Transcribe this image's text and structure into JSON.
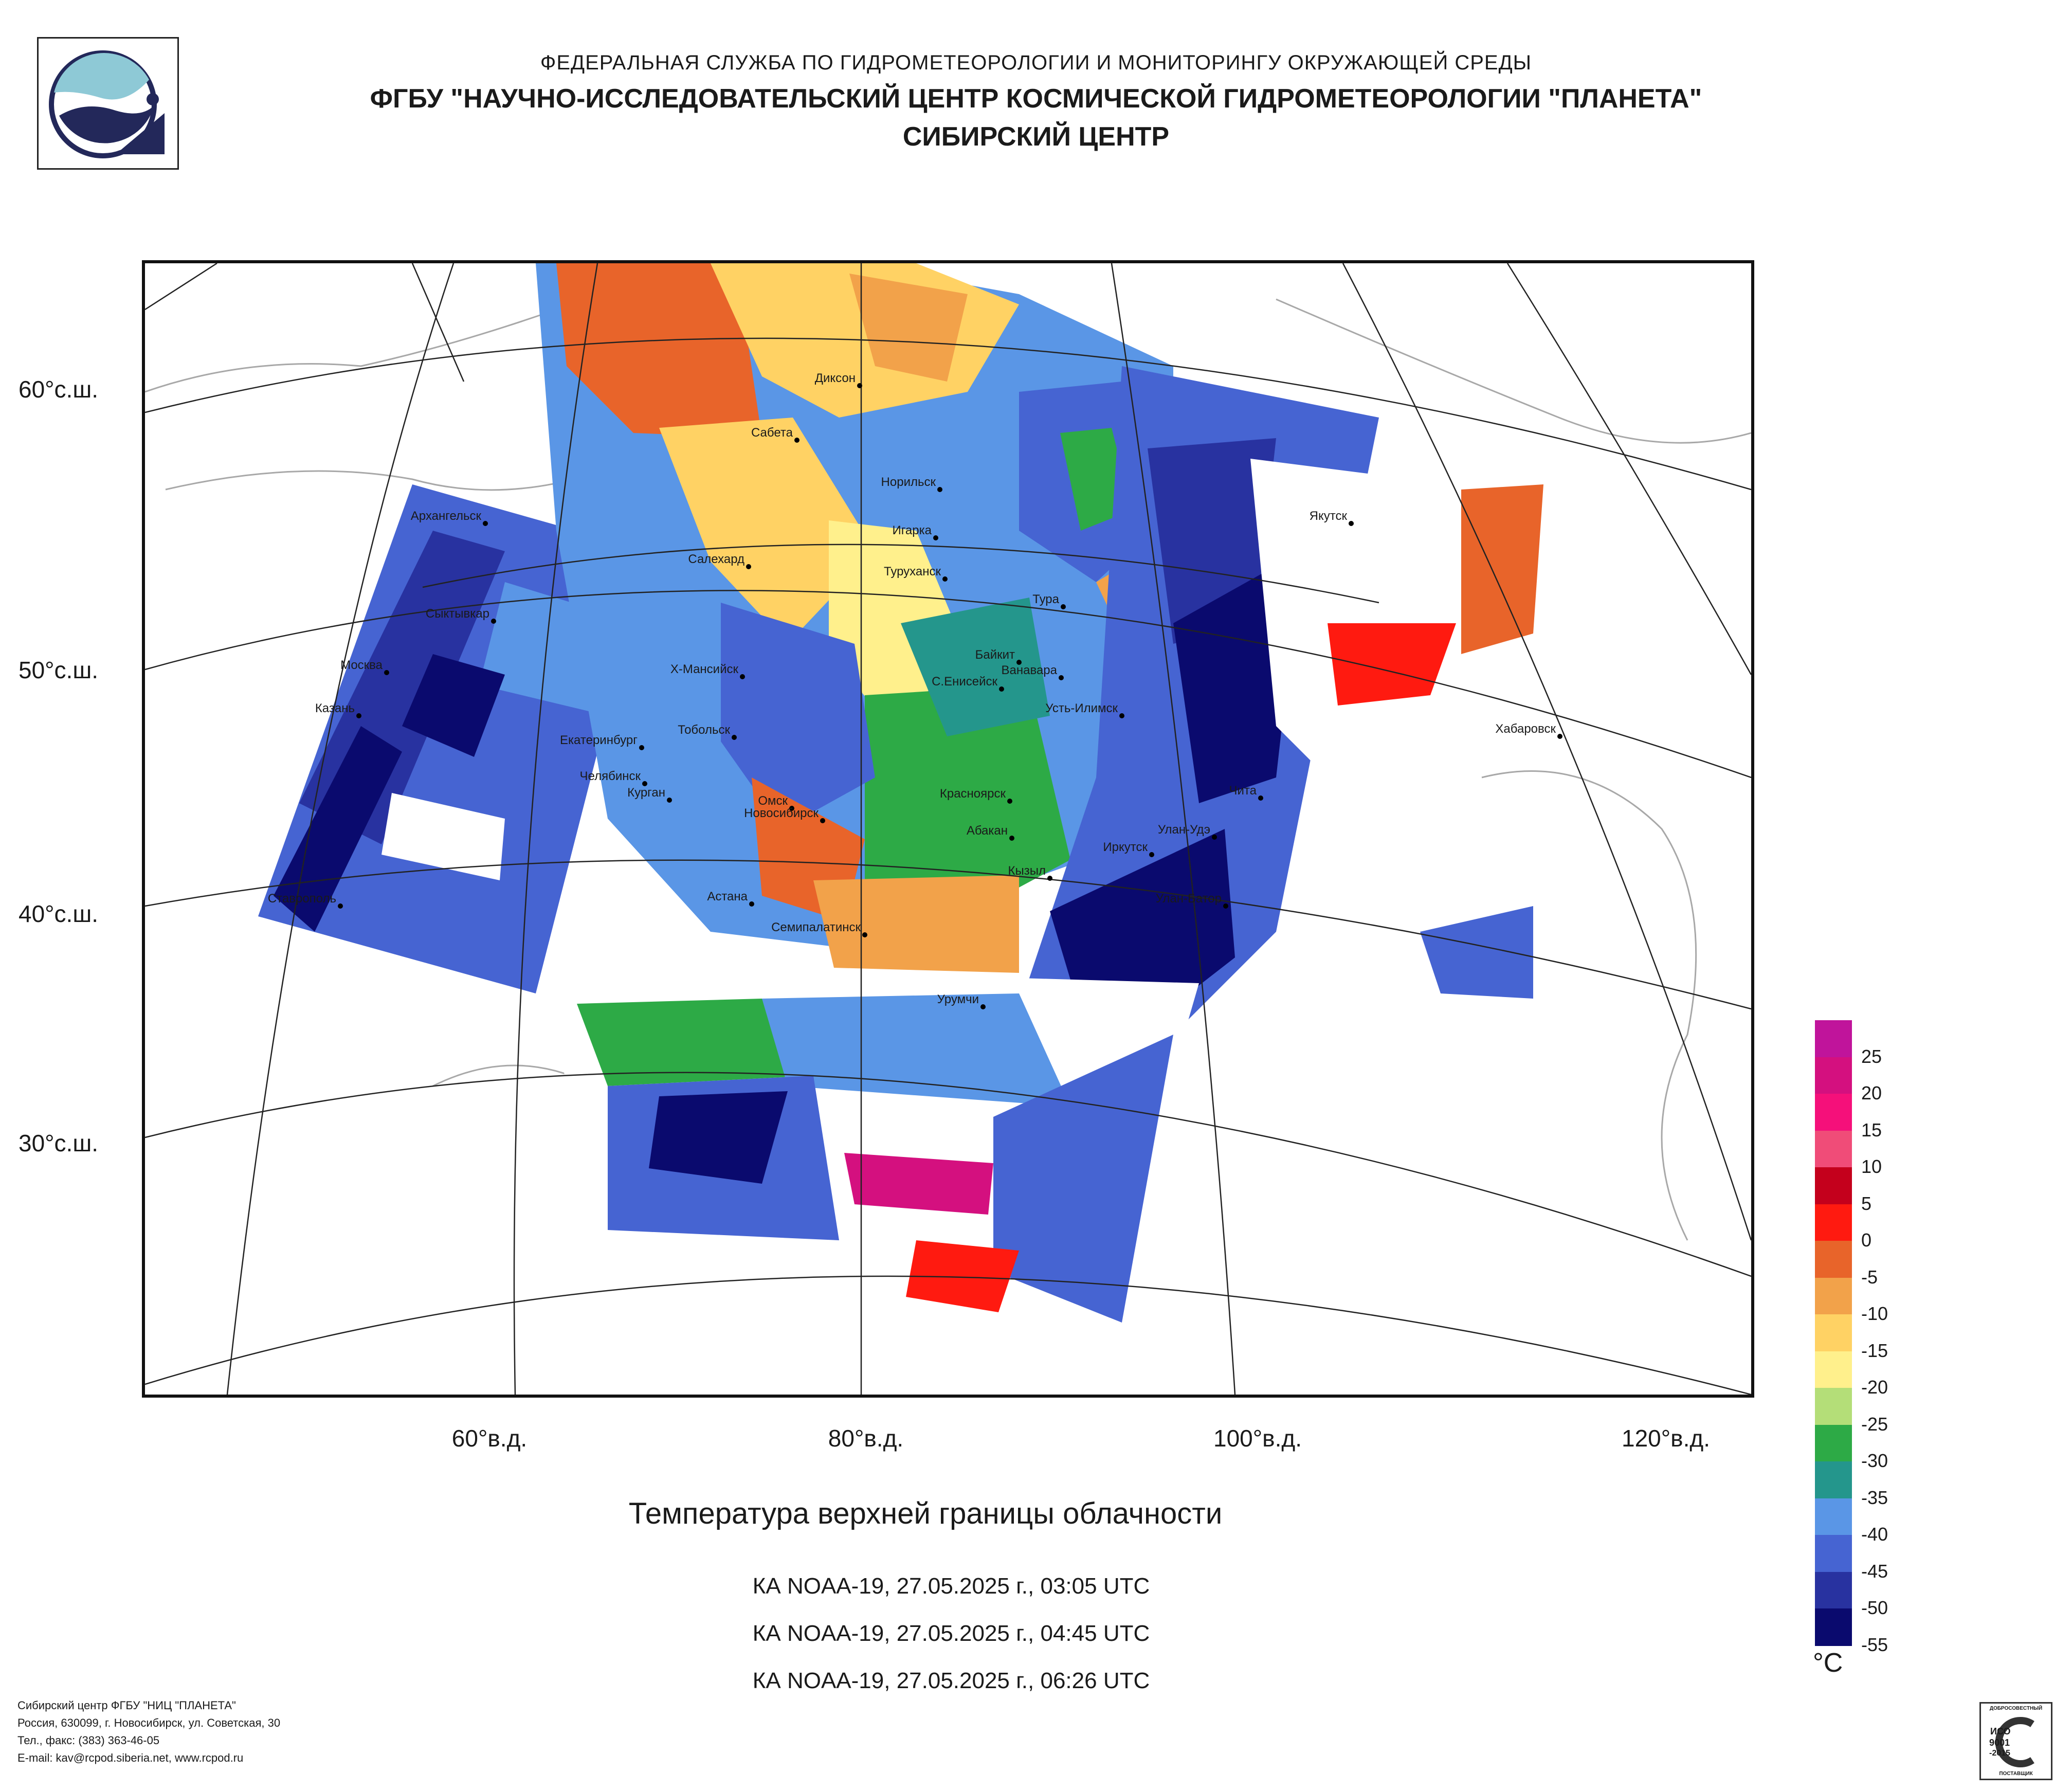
{
  "header": {
    "line1": "ФЕДЕРАЛЬНАЯ СЛУЖБА ПО ГИДРОМЕТЕОРОЛОГИИ И МОНИТОРИНГУ ОКРУЖАЮЩЕЙ СРЕДЫ",
    "line2": "ФГБУ \"НАУЧНО-ИССЛЕДОВАТЕЛЬСКИЙ ЦЕНТР КОСМИЧЕСКОЙ ГИДРОМЕТЕОРОЛОГИИ \"ПЛАНЕТА\"",
    "line3": "СИБИРСКИЙ ЦЕНТР"
  },
  "map": {
    "lat_labels": [
      "60°с.ш.",
      "50°с.ш.",
      "40°с.ш.",
      "30°с.ш."
    ],
    "lon_labels": [
      "60°в.д.",
      "80°в.д.",
      "100°в.д.",
      "120°в.д."
    ],
    "cities": [
      "Диксон",
      "Сабета",
      "Норильск",
      "Игарка",
      "Туруханск",
      "Тура",
      "Якутск",
      "Архангельск",
      "Салехард",
      "Сыктывкар",
      "Москва",
      "Х-Мансийск",
      "Байкит",
      "Ванавара",
      "С.Енисейск",
      "Усть-Илимск",
      "Хабаровск",
      "Казань",
      "Тобольск",
      "Екатеринбург",
      "Челябинск",
      "Курган",
      "Красноярск",
      "Омск",
      "Новосибирск",
      "Абакан",
      "Улан-Удэ",
      "Иркутск",
      "Чита",
      "Кызыл",
      "Астана",
      "Ставрополь",
      "Улан-Батор",
      "Семипалатинск",
      "Урумчи"
    ],
    "accent_colors": {
      "frame": "#111111",
      "grid": "#222222",
      "coast": "#999999"
    }
  },
  "title": "Температура верхней границы облачности",
  "satellite_passes": [
    "КА NOAA-19, 27.05.2025 г., 03:05 UTC",
    "КА NOAA-19, 27.05.2025 г., 04:45 UTC",
    "КА NOAA-19, 27.05.2025 г., 06:26 UTC"
  ],
  "colorbar": {
    "labels": [
      "25",
      "20",
      "15",
      "10",
      "5",
      "0",
      "-5",
      "-10",
      "-15",
      "-20",
      "-25",
      "-30",
      "-35",
      "-40",
      "-45",
      "-50",
      "-55"
    ],
    "colors": [
      "#c0149b",
      "#d4107f",
      "#f5107a",
      "#f04c78",
      "#c4001c",
      "#ff1a10",
      "#e8642a",
      "#f2a24a",
      "#ffd264",
      "#fff08c",
      "#b4de78",
      "#2daa46",
      "#24968c",
      "#5a96e6",
      "#4664d2",
      "#2832a0",
      "#0a0a6e"
    ],
    "unit": "°C"
  },
  "footer": {
    "line1": "Сибирский центр ФГБУ \"НИЦ \"ПЛАНЕТА\"",
    "line2": "Россия, 630099, г. Новосибирск, ул. Советская, 30",
    "line3": "Тел., факс: (383) 363-46-05",
    "line4": "E-mail: kav@rcpod.siberia.net, www.rcpod.ru"
  },
  "iso_badge": {
    "top": "ДОБРОСОВЕСТНЫЙ",
    "mid1": "ИСО",
    "mid2": "9001",
    "mid3": "-2015",
    "bottom": "ПОСТАВЩИК"
  }
}
